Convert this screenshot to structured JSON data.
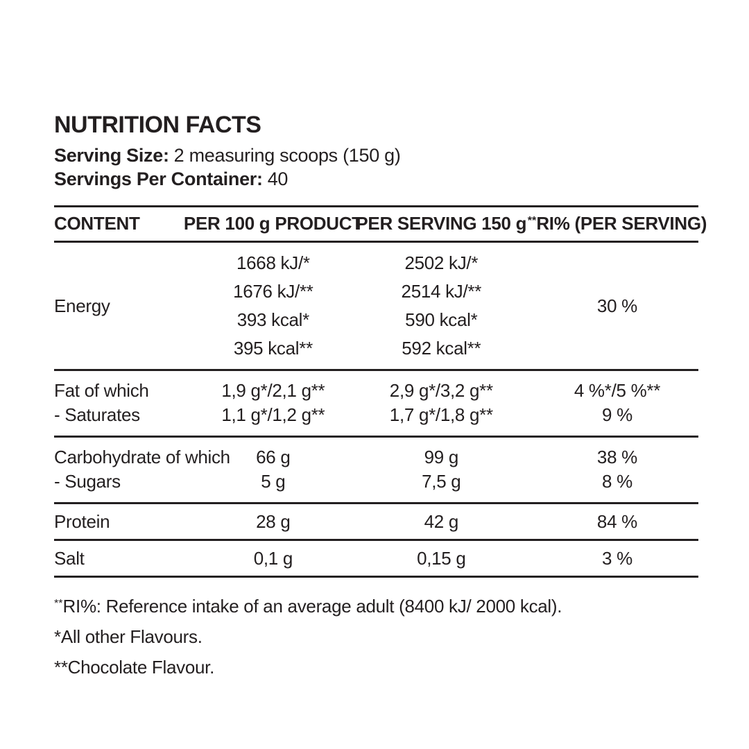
{
  "colors": {
    "text": "#231f20",
    "background": "#ffffff"
  },
  "header": {
    "title": "NUTRITION FACTS",
    "serving_size": {
      "label": "Serving Size:",
      "value": "2 measuring scoops (150 g)"
    },
    "servings_per_container": {
      "label": "Servings Per Container:",
      "value": "40"
    }
  },
  "table": {
    "columns": {
      "content": "CONTENT",
      "per_100g": "PER 100 g PRODUCT",
      "per_serving": "PER SERVING 150 g",
      "ri_sup": "**",
      "ri": "RI% (PER SERVING)"
    },
    "sections": [
      {
        "name": "Energy",
        "labels": [
          "Energy"
        ],
        "per_100g": [
          "1668 kJ/*",
          "1676 kJ/**",
          "393 kcal*",
          "395 kcal**"
        ],
        "per_serving": [
          "2502 kJ/*",
          "2514 kJ/**",
          "590 kcal*",
          "592 kcal**"
        ],
        "ri": [
          "30 %"
        ]
      },
      {
        "name": "Fat",
        "labels": [
          "Fat of which",
          "- Saturates"
        ],
        "per_100g": [
          "1,9 g*/2,1 g**",
          "1,1 g*/1,2 g**"
        ],
        "per_serving": [
          "2,9 g*/3,2 g**",
          "1,7 g*/1,8 g**"
        ],
        "ri": [
          "4 %*/5 %**",
          "9 %"
        ]
      },
      {
        "name": "Carbohydrate",
        "labels": [
          "Carbohydrate of which",
          "- Sugars"
        ],
        "per_100g": [
          "66 g",
          "5 g"
        ],
        "per_serving": [
          "99 g",
          "7,5 g"
        ],
        "ri": [
          "38 %",
          "8 %"
        ]
      },
      {
        "name": "Protein",
        "labels": [
          "Protein"
        ],
        "per_100g": [
          "28 g"
        ],
        "per_serving": [
          "42 g"
        ],
        "ri": [
          "84 %"
        ]
      },
      {
        "name": "Salt",
        "labels": [
          "Salt"
        ],
        "per_100g": [
          "0,1 g"
        ],
        "per_serving": [
          "0,15 g"
        ],
        "ri": [
          "3 %"
        ]
      }
    ]
  },
  "footnotes": [
    {
      "sup": "**",
      "text": "RI%: Reference intake of an average adult (8400 kJ/ 2000 kcal)."
    },
    {
      "sup": "",
      "text": "*All other Flavours."
    },
    {
      "sup": "",
      "text": "**Chocolate Flavour."
    }
  ]
}
